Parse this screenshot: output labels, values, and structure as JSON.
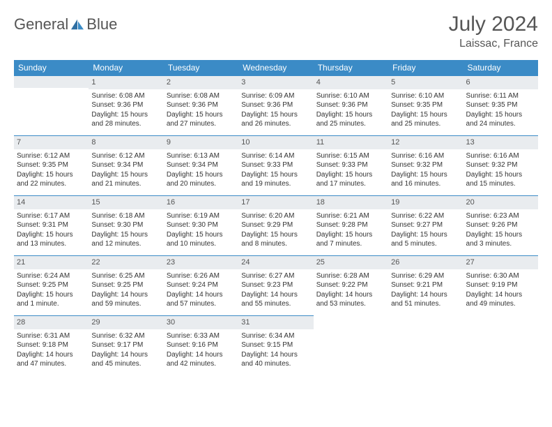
{
  "brand": {
    "part1": "General",
    "part2": "Blue"
  },
  "header": {
    "month_title": "July 2024",
    "location": "Laissac, France"
  },
  "colors": {
    "header_bg": "#3b8bc6",
    "header_text": "#ffffff",
    "daynum_bg": "#e9ecef",
    "row_divider": "#3b8bc6",
    "text": "#333333",
    "title_text": "#555555",
    "logo_accent": "#2f6fa3"
  },
  "typography": {
    "month_title_pt": 30,
    "location_pt": 16,
    "dayheader_pt": 12,
    "daynum_pt": 11,
    "cell_pt": 10
  },
  "layout": {
    "columns": 7,
    "first_weekday_offset": 1
  },
  "day_headers": [
    "Sunday",
    "Monday",
    "Tuesday",
    "Wednesday",
    "Thursday",
    "Friday",
    "Saturday"
  ],
  "days": [
    {
      "n": 1,
      "sunrise": "6:08 AM",
      "sunset": "9:36 PM",
      "daylight": "15 hours and 28 minutes."
    },
    {
      "n": 2,
      "sunrise": "6:08 AM",
      "sunset": "9:36 PM",
      "daylight": "15 hours and 27 minutes."
    },
    {
      "n": 3,
      "sunrise": "6:09 AM",
      "sunset": "9:36 PM",
      "daylight": "15 hours and 26 minutes."
    },
    {
      "n": 4,
      "sunrise": "6:10 AM",
      "sunset": "9:36 PM",
      "daylight": "15 hours and 25 minutes."
    },
    {
      "n": 5,
      "sunrise": "6:10 AM",
      "sunset": "9:35 PM",
      "daylight": "15 hours and 25 minutes."
    },
    {
      "n": 6,
      "sunrise": "6:11 AM",
      "sunset": "9:35 PM",
      "daylight": "15 hours and 24 minutes."
    },
    {
      "n": 7,
      "sunrise": "6:12 AM",
      "sunset": "9:35 PM",
      "daylight": "15 hours and 22 minutes."
    },
    {
      "n": 8,
      "sunrise": "6:12 AM",
      "sunset": "9:34 PM",
      "daylight": "15 hours and 21 minutes."
    },
    {
      "n": 9,
      "sunrise": "6:13 AM",
      "sunset": "9:34 PM",
      "daylight": "15 hours and 20 minutes."
    },
    {
      "n": 10,
      "sunrise": "6:14 AM",
      "sunset": "9:33 PM",
      "daylight": "15 hours and 19 minutes."
    },
    {
      "n": 11,
      "sunrise": "6:15 AM",
      "sunset": "9:33 PM",
      "daylight": "15 hours and 17 minutes."
    },
    {
      "n": 12,
      "sunrise": "6:16 AM",
      "sunset": "9:32 PM",
      "daylight": "15 hours and 16 minutes."
    },
    {
      "n": 13,
      "sunrise": "6:16 AM",
      "sunset": "9:32 PM",
      "daylight": "15 hours and 15 minutes."
    },
    {
      "n": 14,
      "sunrise": "6:17 AM",
      "sunset": "9:31 PM",
      "daylight": "15 hours and 13 minutes."
    },
    {
      "n": 15,
      "sunrise": "6:18 AM",
      "sunset": "9:30 PM",
      "daylight": "15 hours and 12 minutes."
    },
    {
      "n": 16,
      "sunrise": "6:19 AM",
      "sunset": "9:30 PM",
      "daylight": "15 hours and 10 minutes."
    },
    {
      "n": 17,
      "sunrise": "6:20 AM",
      "sunset": "9:29 PM",
      "daylight": "15 hours and 8 minutes."
    },
    {
      "n": 18,
      "sunrise": "6:21 AM",
      "sunset": "9:28 PM",
      "daylight": "15 hours and 7 minutes."
    },
    {
      "n": 19,
      "sunrise": "6:22 AM",
      "sunset": "9:27 PM",
      "daylight": "15 hours and 5 minutes."
    },
    {
      "n": 20,
      "sunrise": "6:23 AM",
      "sunset": "9:26 PM",
      "daylight": "15 hours and 3 minutes."
    },
    {
      "n": 21,
      "sunrise": "6:24 AM",
      "sunset": "9:25 PM",
      "daylight": "15 hours and 1 minute."
    },
    {
      "n": 22,
      "sunrise": "6:25 AM",
      "sunset": "9:25 PM",
      "daylight": "14 hours and 59 minutes."
    },
    {
      "n": 23,
      "sunrise": "6:26 AM",
      "sunset": "9:24 PM",
      "daylight": "14 hours and 57 minutes."
    },
    {
      "n": 24,
      "sunrise": "6:27 AM",
      "sunset": "9:23 PM",
      "daylight": "14 hours and 55 minutes."
    },
    {
      "n": 25,
      "sunrise": "6:28 AM",
      "sunset": "9:22 PM",
      "daylight": "14 hours and 53 minutes."
    },
    {
      "n": 26,
      "sunrise": "6:29 AM",
      "sunset": "9:21 PM",
      "daylight": "14 hours and 51 minutes."
    },
    {
      "n": 27,
      "sunrise": "6:30 AM",
      "sunset": "9:19 PM",
      "daylight": "14 hours and 49 minutes."
    },
    {
      "n": 28,
      "sunrise": "6:31 AM",
      "sunset": "9:18 PM",
      "daylight": "14 hours and 47 minutes."
    },
    {
      "n": 29,
      "sunrise": "6:32 AM",
      "sunset": "9:17 PM",
      "daylight": "14 hours and 45 minutes."
    },
    {
      "n": 30,
      "sunrise": "6:33 AM",
      "sunset": "9:16 PM",
      "daylight": "14 hours and 42 minutes."
    },
    {
      "n": 31,
      "sunrise": "6:34 AM",
      "sunset": "9:15 PM",
      "daylight": "14 hours and 40 minutes."
    }
  ],
  "labels": {
    "sunrise": "Sunrise:",
    "sunset": "Sunset:",
    "daylight": "Daylight:"
  }
}
